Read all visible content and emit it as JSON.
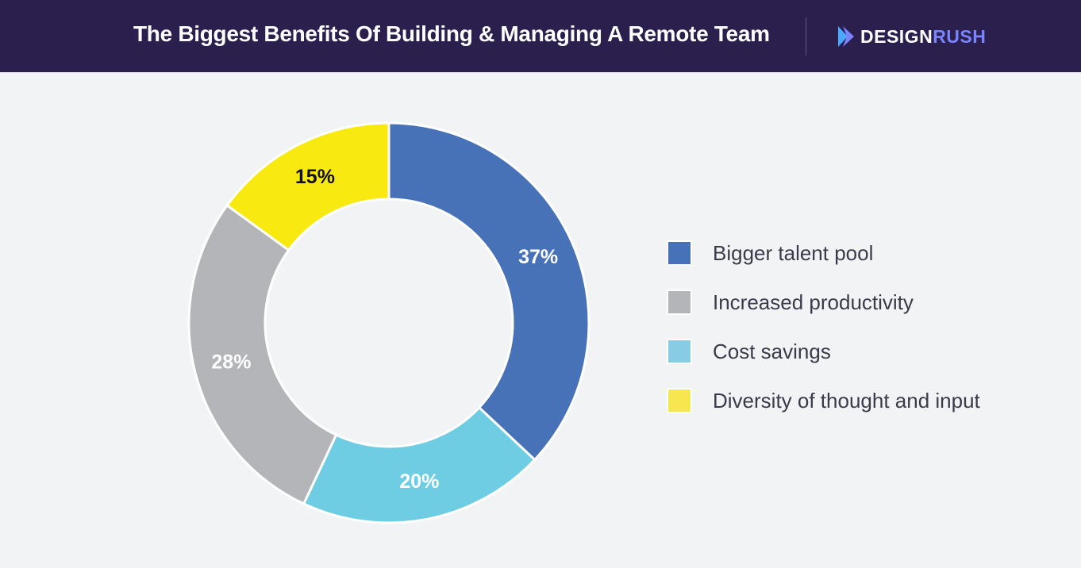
{
  "header": {
    "title": "The Biggest Benefits Of Building & Managing A Remote Team",
    "brand_part1": "DESIGN",
    "brand_part2": "RUSH",
    "brand_icon": "play-chevron-icon"
  },
  "chart_data": {
    "type": "pie",
    "donut": true,
    "title": "The Biggest Benefits Of Building & Managing A Remote Team",
    "legend_position": "right",
    "slices": [
      {
        "label": "Bigger talent pool",
        "value": 37,
        "display": "37%",
        "color": "#4772b8",
        "label_color": "#ffffff"
      },
      {
        "label": "Cost savings",
        "value": 20,
        "display": "20%",
        "color": "#6fcde3",
        "label_color": "#ffffff"
      },
      {
        "label": "Increased productivity",
        "value": 28,
        "display": "28%",
        "color": "#b4b5b8",
        "label_color": "#ffffff"
      },
      {
        "label": "Diversity of thought and input",
        "value": 15,
        "display": "15%",
        "color": "#f8e910",
        "label_color": "#111111"
      }
    ]
  },
  "legend": [
    {
      "label": "Bigger talent pool",
      "color": "#4772b8"
    },
    {
      "label": "Increased productivity",
      "color": "#b4b5b8"
    },
    {
      "label": "Cost savings",
      "color": "#86cde3"
    },
    {
      "label": "Diversity of thought and input",
      "color": "#f7e64e"
    }
  ]
}
